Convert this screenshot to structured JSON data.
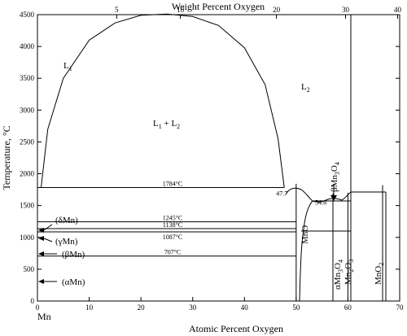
{
  "chart_data": {
    "type": "line",
    "title": "",
    "bottom_axis": {
      "label": "Atomic Percent Oxygen",
      "ticks": [
        0,
        10,
        20,
        30,
        40,
        50,
        60,
        70
      ],
      "xlim": [
        0,
        70
      ]
    },
    "top_axis": {
      "label": "Weight Percent Oxygen",
      "ticks": [
        5,
        10,
        20,
        30,
        40
      ]
    },
    "y_axis": {
      "label": "Temperature, °C",
      "ticks": [
        0,
        500,
        1000,
        1500,
        2000,
        2500,
        3000,
        3500,
        4000,
        4500
      ],
      "ylim": [
        0,
        4500
      ]
    },
    "element_label": "Mn",
    "phase_labels": {
      "L1": "L",
      "L1_sub": "1",
      "L2": "L",
      "L2_sub": "2",
      "L1L2_a": "L",
      "L1L2_a_sub": "1",
      "L1L2_plus": " + L",
      "L1L2_b_sub": "2",
      "MnO": "MnO",
      "aMn3O4_a": "αMn",
      "aMn3O4_sub3": "3",
      "aMn3O4_O": "O",
      "aMn3O4_sub4": "4",
      "Mn2O3_a": "Mn",
      "Mn2O3_sub2": "2",
      "Mn2O3_O": "O",
      "Mn2O3_sub3": "3",
      "MnO2_a": "MnO",
      "MnO2_sub2": "2",
      "bMn3O4_a": "βMn",
      "bMn3O4_sub3": "3",
      "bMn3O4_O": "O",
      "bMn3O4_sub4": "4",
      "dMn": "(δMn)",
      "gMn": "(γMn)",
      "bMn": "(βMn)",
      "aMn": "(αMn)"
    },
    "isotherms": [
      {
        "label": "1784°C",
        "T": 1784,
        "x_from": 0,
        "x_to": 47.7
      },
      {
        "label": "1245°C",
        "T": 1245,
        "x_from": 0,
        "x_to": 50
      },
      {
        "label": "1138°C",
        "T": 1138,
        "x_from": 0,
        "x_to": 50
      },
      {
        "label": "1087°C",
        "T": 1087,
        "x_from": 0,
        "x_to": 50
      },
      {
        "label": "707°C",
        "T": 707,
        "x_from": 0,
        "x_to": 50
      }
    ],
    "point_labels": [
      {
        "label": "47.7",
        "x": 47.7,
        "T": 1784
      },
      {
        "label": "54.6",
        "x": 54.6,
        "T": 1640
      }
    ],
    "miscibility_gap": {
      "x": [
        0.7,
        2,
        5,
        10,
        15,
        20,
        25,
        30,
        35,
        40,
        44,
        46.5,
        47.7
      ],
      "T": [
        1784,
        2700,
        3500,
        4100,
        4370,
        4490,
        4510,
        4470,
        4330,
        3980,
        3400,
        2550,
        1784
      ]
    },
    "compound_lines": [
      {
        "name": "MnO_left",
        "x": 50,
        "T_from": 0,
        "T_to": 1842
      },
      {
        "name": "Mn3O4",
        "x": 57.1,
        "T_from": 0,
        "T_to": 1690
      },
      {
        "name": "Mn2O3",
        "x": 60,
        "T_from": 0,
        "T_to": 1700
      },
      {
        "name": "MnO2",
        "x": 66.7,
        "T_from": 0,
        "T_to": 1820
      }
    ]
  }
}
